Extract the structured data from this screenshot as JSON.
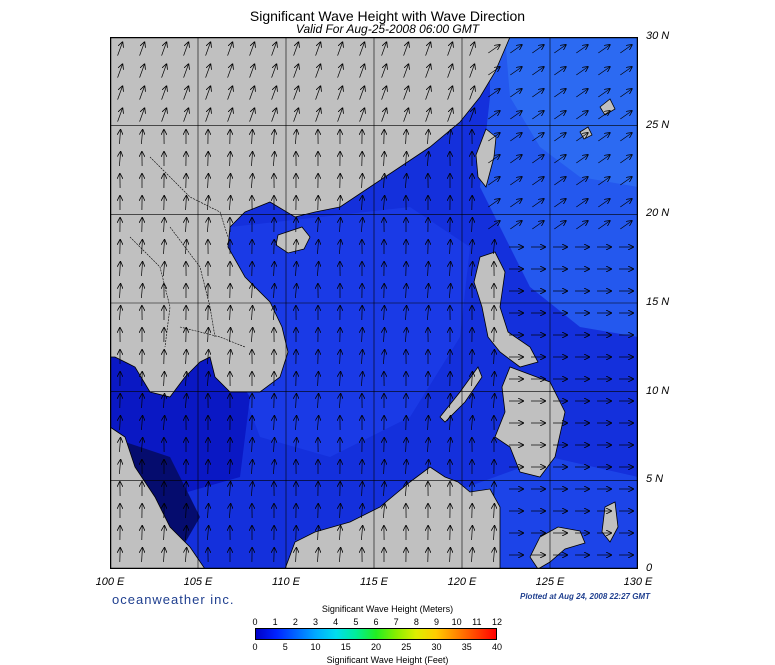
{
  "title": "Significant Wave Height with Wave Direction",
  "subtitle": "Valid For Aug-25-2008 06:00 GMT",
  "lat_labels": [
    "30 N",
    "25 N",
    "20 N",
    "15 N",
    "10 N",
    "5 N",
    "0"
  ],
  "lon_labels": [
    "100 E",
    "105 E",
    "110 E",
    "115 E",
    "120 E",
    "125 E",
    "130 E"
  ],
  "logo": "oceanweather inc.",
  "plotted": "Plotted at Aug 24, 2008 22:27 GMT",
  "colorbar": {
    "meters_title": "Significant Wave Height (Meters)",
    "feet_title": "Significant Wave Height (Feet)",
    "meters_ticks": [
      "0",
      "1",
      "2",
      "3",
      "4",
      "5",
      "6",
      "7",
      "8",
      "9",
      "10",
      "11",
      "12"
    ],
    "feet_ticks": [
      "0",
      "5",
      "10",
      "15",
      "20",
      "25",
      "30",
      "35",
      "40"
    ],
    "colors": [
      "#0000c8",
      "#0022ff",
      "#0066ff",
      "#00aaff",
      "#00ddee",
      "#00ee99",
      "#22ee22",
      "#88ee00",
      "#ddee00",
      "#ffcc00",
      "#ff8800",
      "#ff4400",
      "#ff0000"
    ]
  },
  "map": {
    "extent": {
      "lon": [
        100,
        130
      ],
      "lat": [
        0,
        30
      ]
    },
    "colors": {
      "land": "#c0c0c0",
      "deep": "#0a14b4",
      "mid": "#1a3ae6",
      "light": "#2a66f0",
      "shallow": "#0f28d2",
      "coast": "#000000",
      "grid": "#000000",
      "arrow": "#000000"
    }
  }
}
